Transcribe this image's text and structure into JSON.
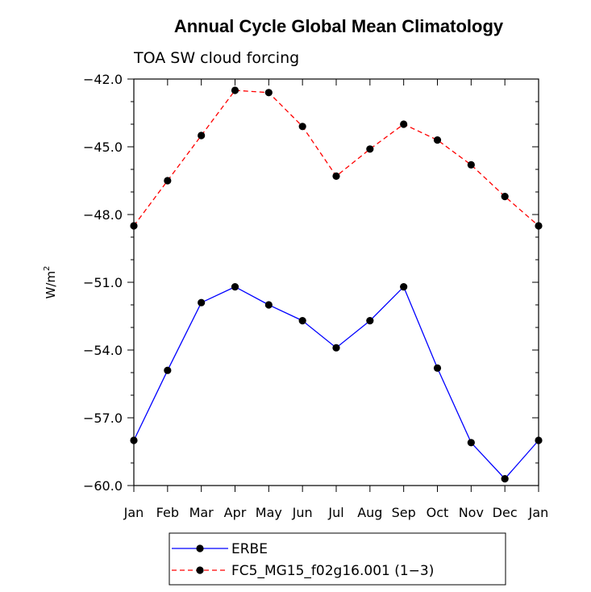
{
  "chart_data": {
    "type": "line",
    "title": "Annual Cycle Global Mean Climatology",
    "subtitle": "TOA SW cloud forcing",
    "ylabel": "W/m",
    "ylabel_superscript": "2",
    "ylim": [
      -60.0,
      -42.0
    ],
    "yticks": [
      -42.0,
      -45.0,
      -48.0,
      -51.0,
      -54.0,
      -57.0,
      -60.0
    ],
    "ytick_labels": [
      "−42.0",
      "−45.0",
      "−48.0",
      "−51.0",
      "−54.0",
      "−57.0",
      "−60.0"
    ],
    "categories": [
      "Jan",
      "Feb",
      "Mar",
      "Apr",
      "May",
      "Jun",
      "Jul",
      "Aug",
      "Sep",
      "Oct",
      "Nov",
      "Dec",
      "Jan"
    ],
    "series": [
      {
        "name": "ERBE",
        "color": "#0000ff",
        "dash": "solid",
        "values": [
          -58.0,
          -54.9,
          -51.9,
          -51.2,
          -52.0,
          -52.7,
          -53.9,
          -52.7,
          -51.2,
          -54.8,
          -58.1,
          -59.7,
          -58.0
        ]
      },
      {
        "name": "FC5_MG15_f02g16.001 (1−3)",
        "color": "#ff0000",
        "dash": "dashed",
        "values": [
          -48.5,
          -46.5,
          -44.5,
          -42.5,
          -42.6,
          -44.1,
          -46.3,
          -45.1,
          -44.0,
          -44.7,
          -45.8,
          -47.2,
          -48.5
        ]
      }
    ],
    "legend": [
      {
        "label": "ERBE",
        "color": "#0000ff",
        "dash": "solid"
      },
      {
        "label": "FC5_MG15_f02g16.001 (1−3)",
        "color": "#ff0000",
        "dash": "dashed"
      }
    ],
    "legend_position": "bottom"
  }
}
